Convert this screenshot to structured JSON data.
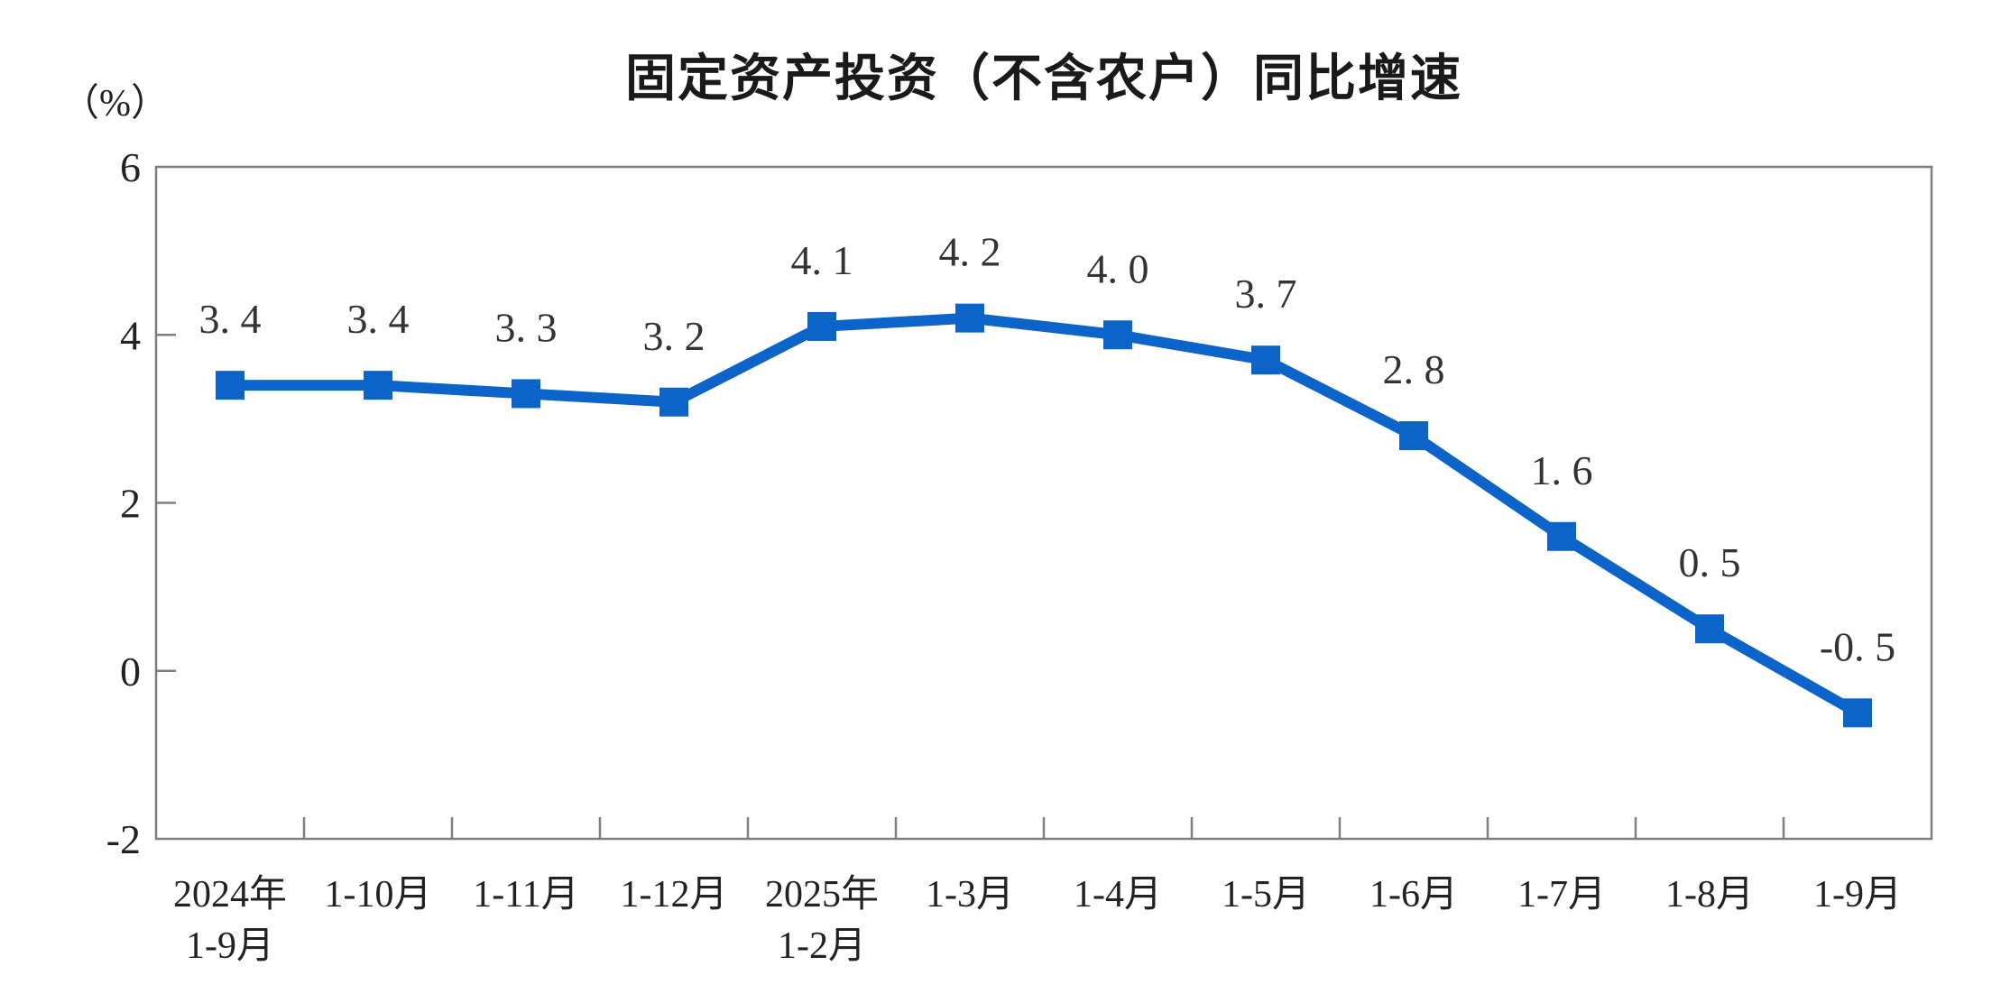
{
  "chart": {
    "title": "固定资产投资（不含农户）同比增速",
    "unit_label": "（%）"
  },
  "chart_data": {
    "type": "line",
    "title": "固定资产投资（不含农户）同比增速",
    "ylabel": "（%）",
    "xlabel": "",
    "grid": false,
    "legend_position": "none",
    "ylim": [
      -2,
      6
    ],
    "yticks": [
      6,
      4,
      2,
      0,
      -2
    ],
    "ytick_labels": [
      "6",
      "4",
      "2",
      "0",
      "-2"
    ],
    "categories": [
      "2024年1-9月",
      "1-10月",
      "1-11月",
      "1-12月",
      "2025年1-2月",
      "1-3月",
      "1-4月",
      "1-5月",
      "1-6月",
      "1-7月",
      "1-8月",
      "1-9月"
    ],
    "category_lines": [
      [
        "2024年",
        "1-9月"
      ],
      [
        "1-10月"
      ],
      [
        "1-11月"
      ],
      [
        "1-12月"
      ],
      [
        "2025年",
        "1-2月"
      ],
      [
        "1-3月"
      ],
      [
        "1-4月"
      ],
      [
        "1-5月"
      ],
      [
        "1-6月"
      ],
      [
        "1-7月"
      ],
      [
        "1-8月"
      ],
      [
        "1-9月"
      ]
    ],
    "series": [
      {
        "name": "固定资产投资（不含农户）同比增速",
        "values": [
          3.4,
          3.4,
          3.3,
          3.2,
          4.1,
          4.2,
          4.0,
          3.7,
          2.8,
          1.6,
          0.5,
          -0.5
        ]
      }
    ],
    "point_labels": [
      "3. 4",
      "3. 4",
      "3. 3",
      "3. 2",
      "4. 1",
      "4. 2",
      "4. 0",
      "3. 7",
      "2. 8",
      "1. 6",
      "0. 5",
      "-0. 5"
    ],
    "marker": "square",
    "colors": {
      "line": "#0C64C8",
      "axis": "#7F7F7F",
      "text": "#1A1A1A"
    }
  }
}
